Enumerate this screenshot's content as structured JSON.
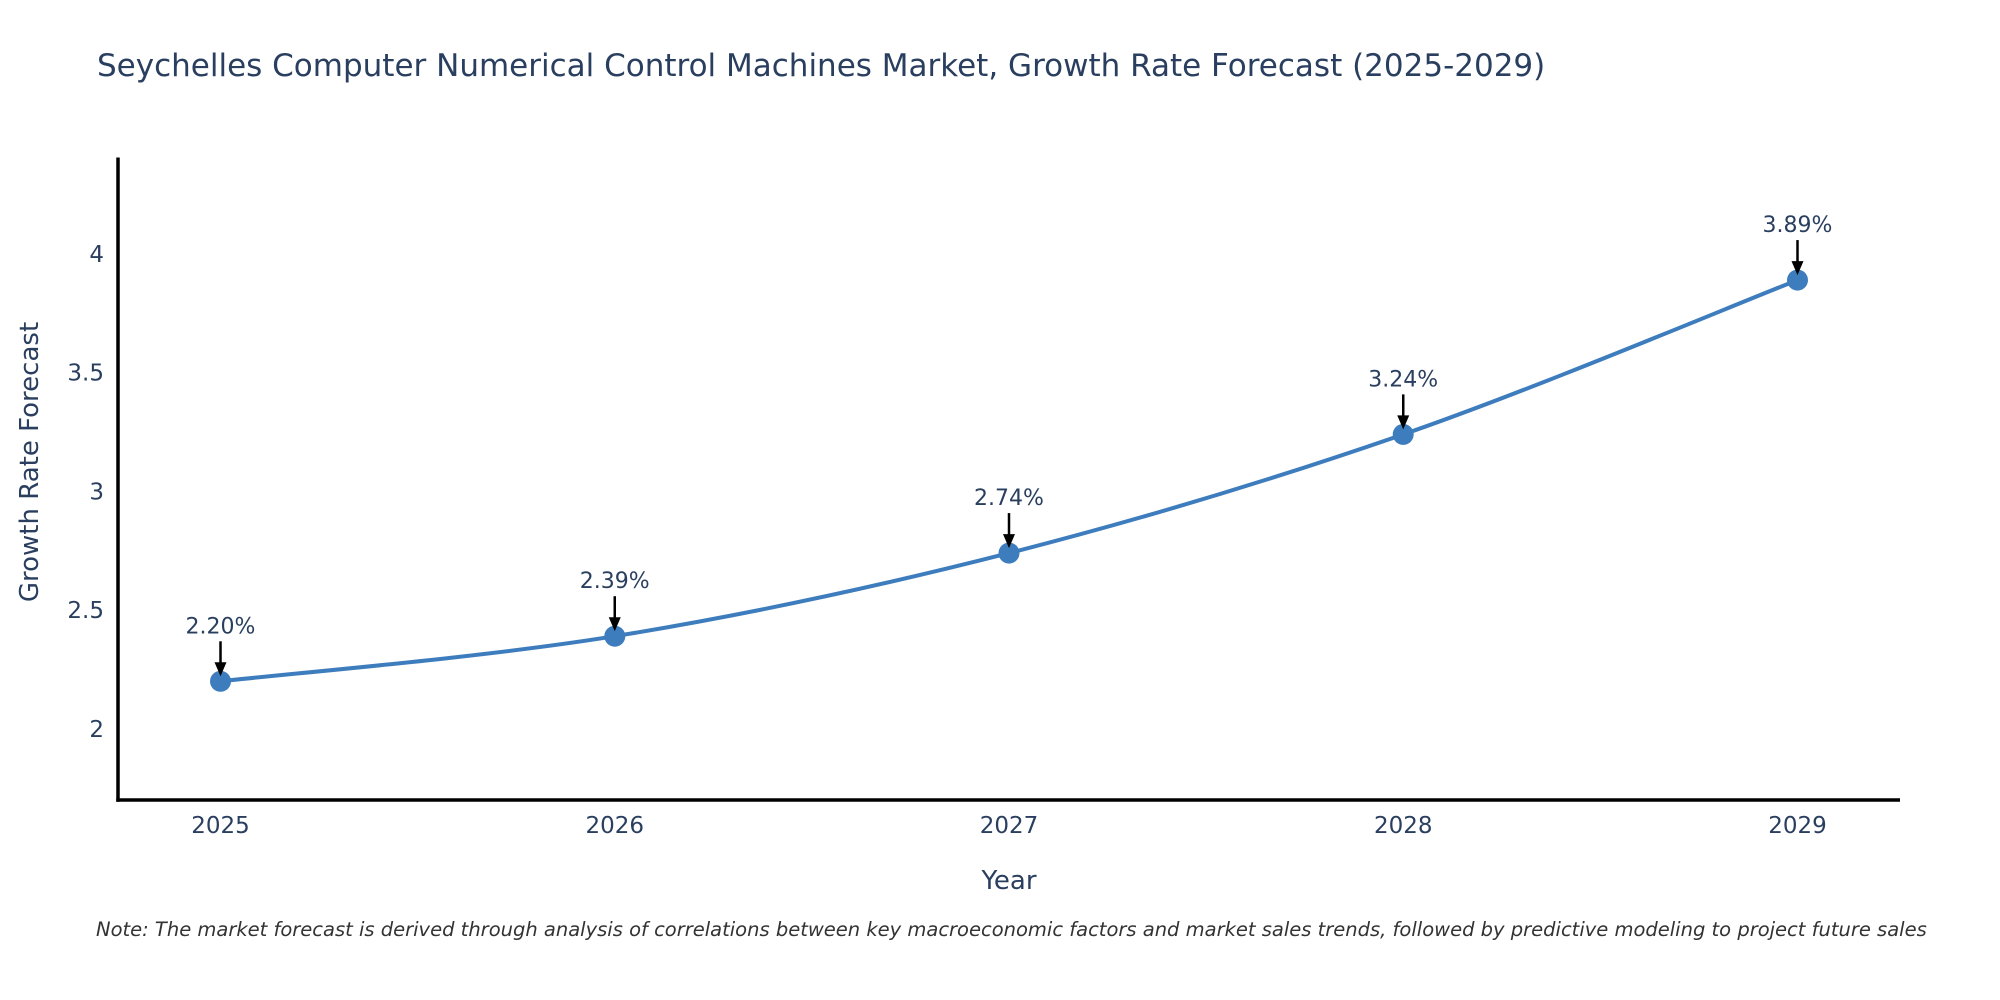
{
  "note": {
    "text": "Note: The market forecast is derived through analysis of correlations between key macroeconomic factors and market sales trends, followed by predictive modeling to project future sales"
  },
  "chart_data": {
    "type": "line",
    "title": "Seychelles Computer Numerical Control Machines Market, Growth Rate Forecast (2025-2029)",
    "xlabel": "Year",
    "ylabel": "Growth Rate Forecast",
    "x": [
      2025,
      2026,
      2027,
      2028,
      2029
    ],
    "values": [
      2.2,
      2.39,
      2.74,
      3.24,
      3.89
    ],
    "point_labels": [
      "2.20%",
      "2.39%",
      "2.74%",
      "3.24%",
      "3.89%"
    ],
    "xtick_labels": [
      "2025",
      "2026",
      "2027",
      "2028",
      "2029"
    ],
    "yticks": [
      2,
      2.5,
      3,
      3.5,
      4
    ],
    "ytick_labels": [
      "2",
      "2.5",
      "3",
      "3.5",
      "4"
    ],
    "xlim": [
      2024.74,
      2029.26
    ],
    "ylim": [
      1.7,
      4.4
    ],
    "grid": false,
    "legend_position": "none",
    "colors": {
      "line": "#3e7dbd",
      "marker": "#3e7dbd",
      "axis": "#000000",
      "text": "#2a3f5f",
      "annotation_arrow": "#000000",
      "annotation_text": "#2a3f5f"
    }
  }
}
